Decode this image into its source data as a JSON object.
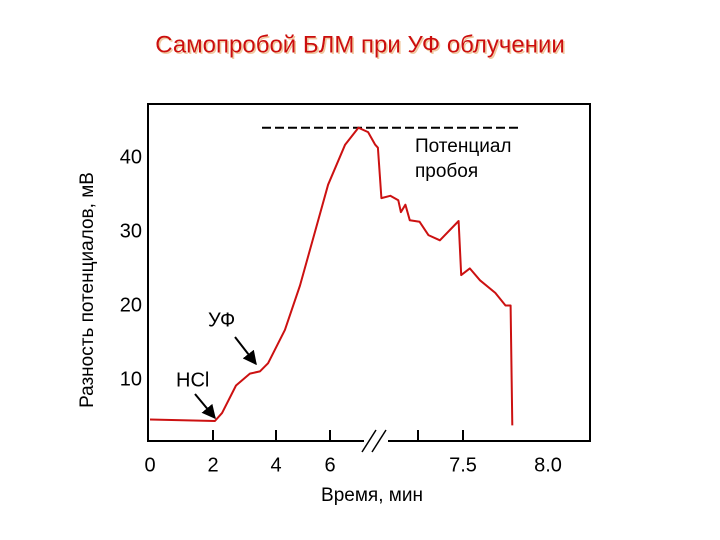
{
  "chart_data": {
    "type": "line",
    "title": "Самопробой БЛМ при УФ облучении",
    "x_label": "Время, мин",
    "y_label": "Разность потенциалов, мВ",
    "xticks": [
      0,
      2,
      4,
      6,
      7.5,
      {
        "value": 8,
        "label": "8.0"
      }
    ],
    "ylim": [
      1.8,
      47.3
    ],
    "yticks": [
      10,
      20,
      30,
      40
    ],
    "series": [
      {
        "name": "Разность потенциалов",
        "color": "#cc1111",
        "x": [
          0,
          2.06,
          2.29,
          2.73,
          3.17,
          3.49,
          3.75,
          4.33,
          4.89,
          5.44,
          5.93,
          6.17,
          6.32,
          6.43,
          6.51,
          6.54,
          6.58,
          6.68,
          6.77,
          6.8,
          6.85,
          6.9,
          7.01,
          7.11,
          7.24,
          7.45,
          7.48,
          7.54,
          7.6,
          7.69,
          7.75,
          7.78,
          7.79
        ],
        "values": [
          4.7,
          4.5,
          5.6,
          9.3,
          10.9,
          11.2,
          12.3,
          16.8,
          22.8,
          30,
          36.4,
          41.8,
          44.1,
          43.5,
          41.8,
          41.4,
          34.6,
          34.9,
          34.3,
          32.7,
          33.7,
          31.6,
          31.4,
          29.6,
          28.9,
          31.5,
          24.2,
          25.1,
          23.5,
          21.8,
          20.1,
          20.1,
          3.9
        ]
      }
    ],
    "reference_line": {
      "value": 44.1,
      "label": "Потенциал пробоя"
    },
    "annotations": [
      "HCl",
      "УФ"
    ]
  }
}
